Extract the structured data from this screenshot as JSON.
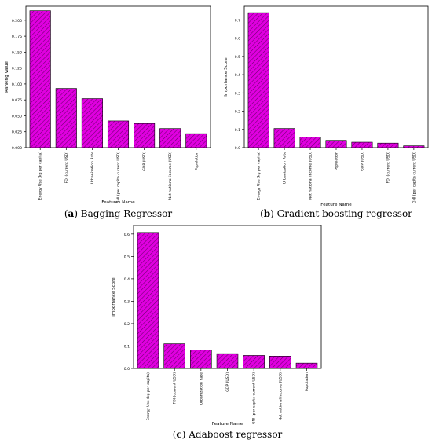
{
  "chart_data": [
    {
      "type": "bar",
      "panel_label": "(a)",
      "caption": "Bagging Regressor",
      "xlabel": "Features Name",
      "ylabel": "Ranking Value",
      "categories": [
        "Energy Use (kg per capita)",
        "FDI (current USD)",
        "Urbanization Rate",
        "GNI (per capita current USD)",
        "GDP (USD)",
        "Net national income (USD)",
        "Population"
      ],
      "values": [
        0.215,
        0.093,
        0.077,
        0.042,
        0.038,
        0.03,
        0.022
      ],
      "yticks": [
        "0.000",
        "0.025",
        "0.050",
        "0.075",
        "0.100",
        "0.125",
        "0.150",
        "0.175",
        "0.200"
      ],
      "ylim": [
        0,
        0.222
      ],
      "bar_color": "#e000e0",
      "hatch": "///",
      "grid": false
    },
    {
      "type": "bar",
      "panel_label": "(b)",
      "caption": "Gradient boosting regressor",
      "xlabel": "Feature Name",
      "ylabel": "Importance Score",
      "categories": [
        "Energy Use (kg per capita)",
        "Urbanization Rate",
        "Net national income (USD)",
        "Population",
        "GDP (USD)",
        "FDI (current USD)",
        "GNI (per capita current USD)"
      ],
      "values": [
        0.74,
        0.105,
        0.058,
        0.04,
        0.03,
        0.025,
        0.01
      ],
      "yticks": [
        "0.0",
        "0.1",
        "0.2",
        "0.3",
        "0.4",
        "0.5",
        "0.6",
        "0.7"
      ],
      "ylim": [
        0,
        0.775
      ],
      "bar_color": "#e000e0",
      "hatch": "///",
      "grid": false
    },
    {
      "type": "bar",
      "panel_label": "(c)",
      "caption": "Adaboost regressor",
      "xlabel": "Feature Name",
      "ylabel": "Importance Score",
      "categories": [
        "Energy Use (kg per capita)",
        "FDI (current USD)",
        "Urbanization Rate",
        "GDP (USD)",
        "GNI (per capita current USD)",
        "Net national income (USD)",
        "Population"
      ],
      "values": [
        0.607,
        0.11,
        0.082,
        0.066,
        0.058,
        0.055,
        0.024
      ],
      "yticks": [
        "0.0",
        "0.1",
        "0.2",
        "0.3",
        "0.4",
        "0.5",
        "0.6"
      ],
      "ylim": [
        0,
        0.638
      ],
      "bar_color": "#e000e0",
      "hatch": "///",
      "grid": false
    }
  ]
}
